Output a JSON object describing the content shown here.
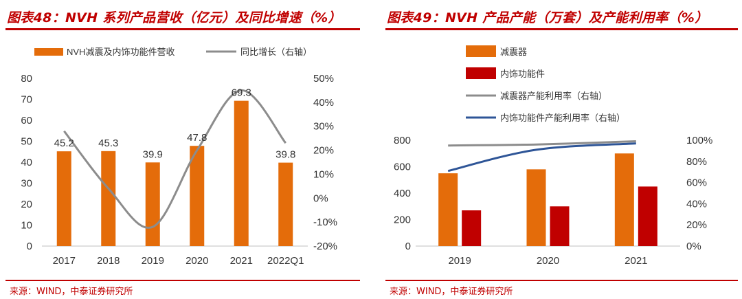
{
  "colors": {
    "brand_red": "#c00000",
    "orange": "#e46c0a",
    "dark_red": "#c00000",
    "gray": "#8c8c8c",
    "blue": "#2e5597"
  },
  "left": {
    "title": "图表48：NVH 系列产品营收（亿元）及同比增速（%）",
    "source": "来源：WIND，中泰证券研究所"
  },
  "right": {
    "title": "图表49：NVH 产品产能（万套）及产能利用率（%）",
    "source": "来源：WIND，中泰证券研究所"
  },
  "chart_data": [
    {
      "type": "bar",
      "title": "NVH 系列产品营收（亿元）及同比增速（%）",
      "categories": [
        "2017",
        "2018",
        "2019",
        "2020",
        "2021",
        "2022Q1"
      ],
      "legend_position": "top",
      "y_left": {
        "min": 0,
        "max": 80,
        "step": 10,
        "ticks": [
          "0",
          "10",
          "20",
          "30",
          "40",
          "50",
          "60",
          "70",
          "80"
        ]
      },
      "y_right": {
        "min": -20,
        "max": 50,
        "step": 10,
        "ticks": [
          "-20%",
          "-10%",
          "0%",
          "10%",
          "20%",
          "30%",
          "40%",
          "50%"
        ]
      },
      "series": [
        {
          "name": "NVH减震及内饰功能件营收",
          "kind": "bar",
          "axis": "left",
          "color": "#e46c0a",
          "values": [
            45.2,
            45.3,
            39.9,
            47.8,
            69.3,
            39.8
          ],
          "labels": [
            "45.2",
            "45.3",
            "39.9",
            "47.8",
            "69.3",
            "39.8"
          ]
        },
        {
          "name": "同比增长（右轴）",
          "kind": "line",
          "axis": "right",
          "color": "#8c8c8c",
          "smooth": true,
          "values": [
            28,
            4,
            -12,
            20,
            45,
            23
          ]
        }
      ]
    },
    {
      "type": "bar",
      "title": "NVH 产品产能（万套）及产能利用率（%）",
      "categories": [
        "2019",
        "2020",
        "2021"
      ],
      "legend_position": "top-left",
      "y_left": {
        "min": 0,
        "max": 800,
        "step": 200,
        "ticks": [
          "0",
          "200",
          "400",
          "600",
          "800"
        ]
      },
      "y_right": {
        "min": 0,
        "max": 100,
        "step": 20,
        "ticks": [
          "0%",
          "20%",
          "40%",
          "60%",
          "80%",
          "100%"
        ]
      },
      "series": [
        {
          "name": "减震器",
          "kind": "bar",
          "axis": "left",
          "color": "#e46c0a",
          "values": [
            550,
            580,
            700
          ]
        },
        {
          "name": "内饰功能件",
          "kind": "bar",
          "axis": "left",
          "color": "#c00000",
          "values": [
            270,
            300,
            450
          ]
        },
        {
          "name": "减震器产能利用率（右轴）",
          "kind": "line",
          "axis": "right",
          "color": "#8c8c8c",
          "smooth": true,
          "values": [
            95,
            96,
            99
          ]
        },
        {
          "name": "内饰功能件产能利用率（右轴）",
          "kind": "line",
          "axis": "right",
          "color": "#2e5597",
          "smooth": true,
          "values": [
            71,
            91,
            97
          ]
        }
      ]
    }
  ]
}
